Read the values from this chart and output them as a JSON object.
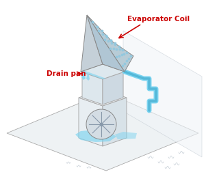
{
  "bg_color": "#ffffff",
  "label_evap": "Evaporator Coil",
  "label_drain": "Drain pan",
  "label_color": "#cc0000",
  "unit_edge": "#aaaaaa",
  "unit_edge_dark": "#888888",
  "water_color": "#7dd4f0",
  "floor_color": "#eef2f4",
  "floor_edge": "#aaaaaa",
  "sketch_color": "#c8d0d8",
  "wall_color": "#eef2f6",
  "box_left_color": "#e8eef2",
  "box_right_color": "#d8e2e8",
  "box_top_color": "#f0f4f6",
  "coil_left_color": "#c8d4dc",
  "coil_right_color": "#b8ccd6",
  "coil_dot_color": "#90c8e0",
  "drain_color": "#dde8ee",
  "pipe_color": "#7dd4f0",
  "pipe_inner": "#55b8d8"
}
